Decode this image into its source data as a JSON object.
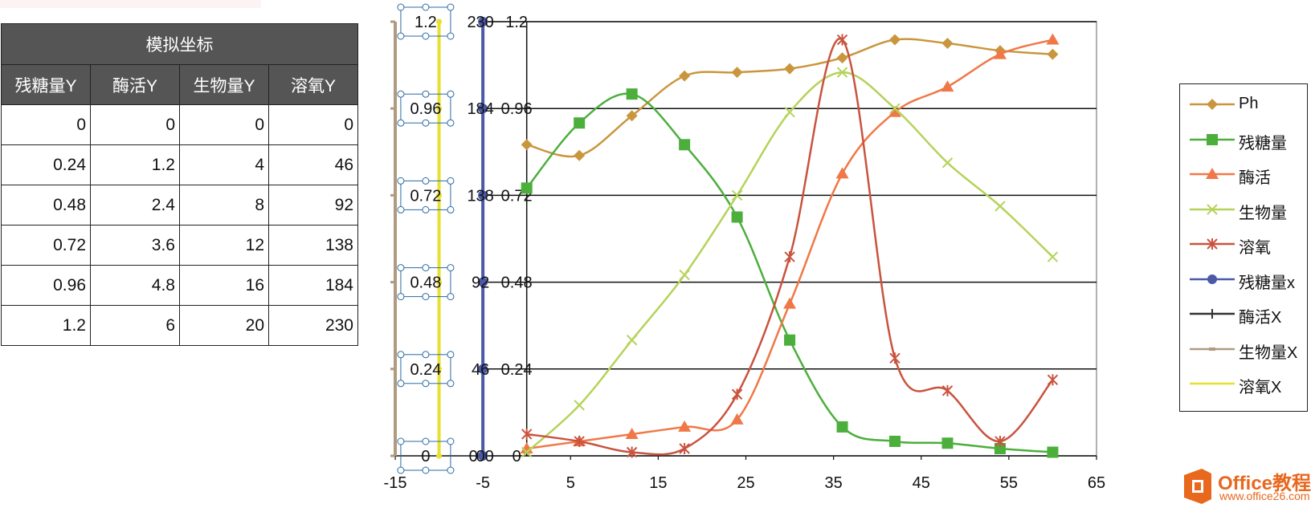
{
  "table": {
    "title": "模拟坐标",
    "headers": [
      "残糖量Y",
      "酶活Y",
      "生物量Y",
      "溶氧Y"
    ],
    "rows": [
      [
        "0",
        "0",
        "0",
        "0"
      ],
      [
        "0.24",
        "1.2",
        "4",
        "46"
      ],
      [
        "0.48",
        "2.4",
        "8",
        "92"
      ],
      [
        "0.72",
        "3.6",
        "12",
        "138"
      ],
      [
        "0.96",
        "4.8",
        "16",
        "184"
      ],
      [
        "1.2",
        "6",
        "20",
        "230"
      ]
    ]
  },
  "chart_data": {
    "type": "scatter",
    "title": "",
    "xlim": [
      -15,
      65
    ],
    "ylim": [
      0,
      1.2
    ],
    "x_ticks": [
      "-15",
      "-5",
      "5",
      "15",
      "25",
      "35",
      "45",
      "55",
      "65"
    ],
    "y_ticks": [
      "0",
      "0.24",
      "0.48",
      "0.72",
      "0.96",
      "1.2"
    ],
    "simulated_axis_labels": [
      {
        "a": "0",
        "b": "0",
        "c": "0",
        "d": "0",
        "e": "0"
      },
      {
        "a": "0.24",
        "b": "46",
        "c": "0.24",
        "d": "",
        "e": ""
      },
      {
        "a": "0.48",
        "b": "92",
        "c": "0.48",
        "d": "",
        "e": ""
      },
      {
        "a": "0.72",
        "b": "138",
        "c": "0.72",
        "d": "",
        "e": ""
      },
      {
        "a": "0.96",
        "b": "184",
        "c": "0.96",
        "d": "",
        "e": ""
      },
      {
        "a": "1.2",
        "b": "230",
        "c": "1.2",
        "d": "",
        "e": ""
      }
    ],
    "legend_position": "right",
    "grid": true,
    "series": [
      {
        "name": "Ph",
        "color": "#c9963e",
        "marker": "diamond",
        "points": [
          [
            0,
            0.86
          ],
          [
            6,
            0.83
          ],
          [
            12,
            0.94
          ],
          [
            18,
            1.05
          ],
          [
            24,
            1.06
          ],
          [
            30,
            1.07
          ],
          [
            36,
            1.1
          ],
          [
            42,
            1.15
          ],
          [
            48,
            1.14
          ],
          [
            54,
            1.12
          ],
          [
            60,
            1.11
          ]
        ]
      },
      {
        "name": "残糖量",
        "color": "#4caf3c",
        "marker": "square",
        "points": [
          [
            0,
            0.74
          ],
          [
            6,
            0.92
          ],
          [
            12,
            1.0
          ],
          [
            18,
            0.86
          ],
          [
            24,
            0.66
          ],
          [
            30,
            0.32
          ],
          [
            36,
            0.08
          ],
          [
            42,
            0.04
          ],
          [
            48,
            0.035
          ],
          [
            54,
            0.02
          ],
          [
            60,
            0.01
          ]
        ]
      },
      {
        "name": "酶活",
        "color": "#f07848",
        "marker": "triangle",
        "points": [
          [
            0,
            0.02
          ],
          [
            6,
            0.04
          ],
          [
            12,
            0.06
          ],
          [
            18,
            0.08
          ],
          [
            24,
            0.1
          ],
          [
            30,
            0.42
          ],
          [
            36,
            0.78
          ],
          [
            42,
            0.95
          ],
          [
            48,
            1.02
          ],
          [
            54,
            1.11
          ],
          [
            60,
            1.15
          ]
        ]
      },
      {
        "name": "生物量",
        "color": "#b5d35a",
        "marker": "x",
        "points": [
          [
            0,
            0.01
          ],
          [
            6,
            0.14
          ],
          [
            12,
            0.32
          ],
          [
            18,
            0.5
          ],
          [
            24,
            0.72
          ],
          [
            30,
            0.95
          ],
          [
            36,
            1.06
          ],
          [
            42,
            0.96
          ],
          [
            48,
            0.81
          ],
          [
            54,
            0.69
          ],
          [
            60,
            0.55
          ]
        ]
      },
      {
        "name": "溶氧",
        "color": "#c9533e",
        "marker": "star",
        "points": [
          [
            0,
            0.06
          ],
          [
            6,
            0.04
          ],
          [
            12,
            0.01
          ],
          [
            18,
            0.02
          ],
          [
            24,
            0.17
          ],
          [
            30,
            0.55
          ],
          [
            36,
            1.15
          ],
          [
            42,
            0.27
          ],
          [
            48,
            0.18
          ],
          [
            54,
            0.04
          ],
          [
            60,
            0.21
          ]
        ]
      },
      {
        "name": "残糖量x",
        "color": "#4a5aa8",
        "marker": "circle",
        "points": []
      },
      {
        "name": "酶活X",
        "color": "#333333",
        "marker": "plus",
        "points": []
      },
      {
        "name": "生物量X",
        "color": "#b09a80",
        "marker": "dash",
        "points": []
      },
      {
        "name": "溶氧X",
        "color": "#e8e030",
        "marker": "none",
        "points": []
      }
    ]
  },
  "logo": {
    "main": "Office教程网",
    "sub": "www.office26.com",
    "color": "#e8681e"
  }
}
